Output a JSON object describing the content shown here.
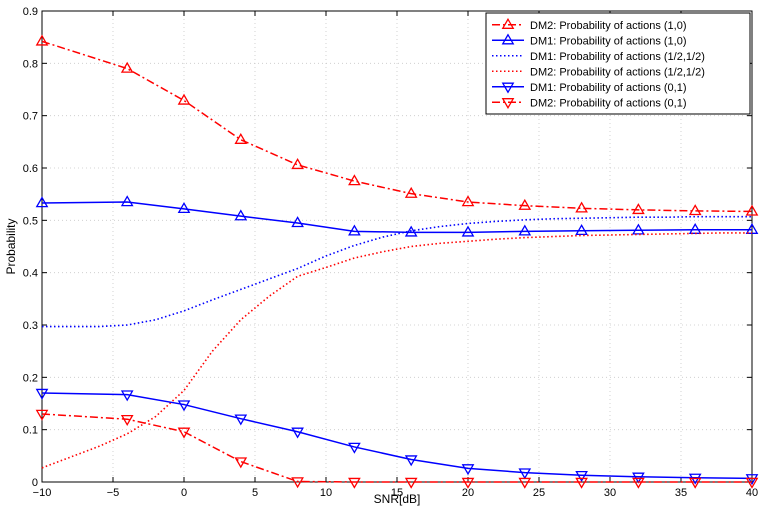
{
  "chart_data": {
    "type": "line",
    "title": "",
    "xlabel": "SNR[dB]",
    "ylabel": "Probability",
    "xlim": [
      -10,
      40
    ],
    "ylim": [
      0,
      0.9
    ],
    "xticks": [
      -10,
      -5,
      0,
      5,
      10,
      15,
      20,
      25,
      30,
      35,
      40
    ],
    "yticks": [
      0,
      0.1,
      0.2,
      0.3,
      0.4,
      0.5,
      0.6,
      0.7,
      0.8,
      0.9
    ],
    "xtick_labels": [
      "−10",
      "−5",
      "0",
      "5",
      "10",
      "15",
      "20",
      "25",
      "30",
      "35",
      "40"
    ],
    "ytick_labels": [
      "0",
      "0.1",
      "0.2",
      "0.3",
      "0.4",
      "0.5",
      "0.6",
      "0.7",
      "0.8",
      "0.9"
    ],
    "grid": true,
    "legend_position": "top-right",
    "series": [
      {
        "name": "DM2: Probability of actions (1,0)",
        "color": "#ff0000",
        "line_style": "dashdot",
        "marker": "triangle-up",
        "x": [
          -10,
          -4,
          0,
          4,
          8,
          12,
          16,
          20,
          24,
          28,
          32,
          36,
          40
        ],
        "y": [
          0.842,
          0.79,
          0.729,
          0.654,
          0.606,
          0.575,
          0.551,
          0.535,
          0.528,
          0.523,
          0.52,
          0.518,
          0.517
        ]
      },
      {
        "name": "DM1: Probability of actions (1,0)",
        "color": "#0000ff",
        "line_style": "solid",
        "marker": "triangle-up",
        "x": [
          -10,
          -4,
          0,
          4,
          8,
          12,
          16,
          20,
          24,
          28,
          32,
          36,
          40
        ],
        "y": [
          0.533,
          0.535,
          0.522,
          0.508,
          0.495,
          0.479,
          0.477,
          0.477,
          0.479,
          0.48,
          0.481,
          0.482,
          0.482
        ]
      },
      {
        "name": "DM1: Probability of actions (1/2,1/2)",
        "color": "#0000ff",
        "line_style": "dotted",
        "marker": "none",
        "x": [
          -10,
          -6,
          -4,
          -2,
          0,
          2,
          4,
          6,
          8,
          10,
          12,
          14,
          16,
          18,
          20,
          22,
          24,
          26,
          28,
          30,
          32,
          34,
          36,
          38,
          40
        ],
        "y": [
          0.297,
          0.297,
          0.3,
          0.31,
          0.327,
          0.348,
          0.368,
          0.388,
          0.408,
          0.432,
          0.452,
          0.468,
          0.48,
          0.488,
          0.494,
          0.498,
          0.501,
          0.503,
          0.504,
          0.505,
          0.506,
          0.506,
          0.507,
          0.507,
          0.507
        ]
      },
      {
        "name": "DM2: Probability of actions (1/2,1/2)",
        "color": "#ff0000",
        "line_style": "dotted",
        "marker": "none",
        "x": [
          -10,
          -6,
          -4,
          -2,
          0,
          2,
          4,
          6,
          8,
          10,
          12,
          14,
          16,
          18,
          20,
          22,
          24,
          26,
          28,
          30,
          32,
          34,
          36,
          38,
          40
        ],
        "y": [
          0.027,
          0.068,
          0.092,
          0.125,
          0.175,
          0.25,
          0.31,
          0.355,
          0.393,
          0.41,
          0.428,
          0.44,
          0.45,
          0.456,
          0.46,
          0.464,
          0.467,
          0.469,
          0.471,
          0.472,
          0.473,
          0.474,
          0.475,
          0.476,
          0.476
        ]
      },
      {
        "name": "DM1: Probability of actions (0,1)",
        "color": "#0000ff",
        "line_style": "solid",
        "marker": "triangle-down",
        "x": [
          -10,
          -4,
          0,
          4,
          8,
          12,
          16,
          20,
          24,
          28,
          32,
          36,
          40
        ],
        "y": [
          0.17,
          0.167,
          0.148,
          0.121,
          0.096,
          0.067,
          0.043,
          0.026,
          0.018,
          0.013,
          0.01,
          0.008,
          0.007
        ]
      },
      {
        "name": "DM2: Probability of actions (0,1)",
        "color": "#ff0000",
        "line_style": "dashdot",
        "marker": "triangle-down",
        "x": [
          -10,
          -4,
          0,
          4,
          8,
          12,
          16,
          20,
          24,
          28,
          32,
          36,
          40
        ],
        "y": [
          0.13,
          0.12,
          0.096,
          0.039,
          0.001,
          0,
          0,
          0,
          0,
          0,
          0,
          0,
          0
        ]
      }
    ]
  }
}
